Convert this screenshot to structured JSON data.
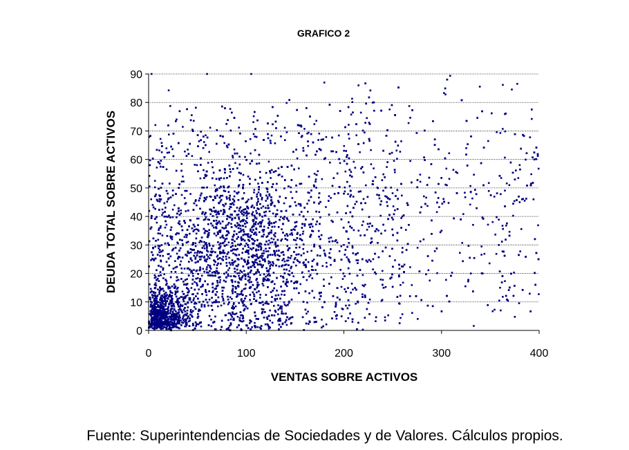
{
  "chart_data": {
    "type": "scatter",
    "title": "GRAFICO 2",
    "xlabel": "VENTAS SOBRE ACTIVOS",
    "ylabel": "DEUDA TOTAL SOBRE ACTIVOS",
    "xlim": [
      0,
      400
    ],
    "ylim": [
      0,
      90
    ],
    "xticks": [
      "0",
      "100",
      "200",
      "300",
      "400"
    ],
    "yticks": [
      "0",
      "10",
      "20",
      "30",
      "40",
      "50",
      "60",
      "70",
      "80",
      "90"
    ],
    "grid": "horizontal",
    "legend": "none",
    "marker_color": "#000080",
    "point_count": 6000,
    "distribution": {
      "cluster_center": [
        90,
        28
      ],
      "dense_corner": [
        10,
        4
      ],
      "spread_x": [
        0,
        400
      ],
      "spread_y": [
        0,
        90
      ],
      "sample_points": [
        [
          5,
          2
        ],
        [
          10,
          5
        ],
        [
          20,
          8
        ],
        [
          30,
          15
        ],
        [
          45,
          20
        ],
        [
          60,
          25
        ],
        [
          80,
          30
        ],
        [
          95,
          35
        ],
        [
          110,
          28
        ],
        [
          130,
          40
        ],
        [
          150,
          45
        ],
        [
          170,
          55
        ],
        [
          200,
          30
        ],
        [
          230,
          25
        ],
        [
          260,
          40
        ],
        [
          300,
          35
        ],
        [
          330,
          20
        ],
        [
          360,
          15
        ],
        [
          380,
          45
        ],
        [
          395,
          60
        ],
        [
          3,
          90
        ],
        [
          60,
          90
        ],
        [
          105,
          90
        ],
        [
          180,
          87
        ],
        [
          215,
          86
        ]
      ]
    }
  },
  "footer": {
    "source": "Fuente: Superintendencias de Sociedades y de Valores. Cálculos propios."
  }
}
